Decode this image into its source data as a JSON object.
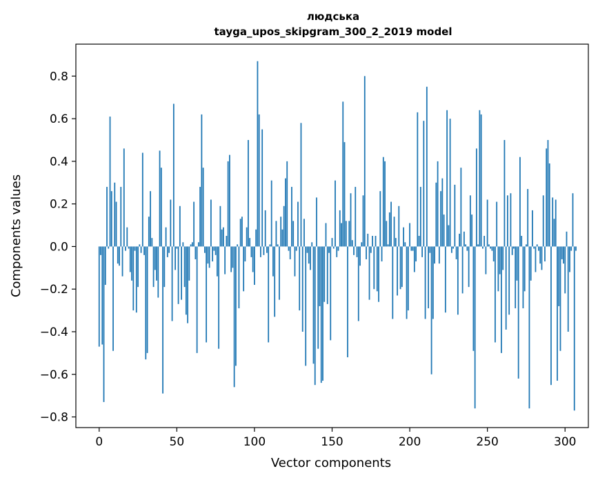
{
  "chart_data": {
    "type": "bar",
    "title": "людська",
    "subtitle": "tayga_upos_skipgram_300_2_2019 model",
    "xlabel": "Vector components",
    "ylabel": "Components values",
    "xlim": [
      -15,
      315
    ],
    "ylim": [
      -0.85,
      0.95
    ],
    "xticks": [
      0,
      50,
      100,
      150,
      200,
      250,
      300
    ],
    "yticks": [
      -0.8,
      -0.6,
      -0.4,
      -0.2,
      0.0,
      0.2,
      0.4,
      0.6,
      0.8
    ],
    "ytick_labels": [
      "−0.8",
      "−0.6",
      "−0.4",
      "−0.2",
      "0.0",
      "0.2",
      "0.4",
      "0.6",
      "0.8"
    ],
    "grid": false,
    "bar_color": "#1f77b4",
    "values": [
      -0.47,
      -0.04,
      -0.46,
      -0.73,
      -0.18,
      0.28,
      -0.01,
      0.61,
      0.26,
      -0.49,
      0.3,
      0.21,
      -0.08,
      -0.09,
      0.28,
      -0.14,
      0.46,
      -0.02,
      0.09,
      -0.01,
      -0.12,
      -0.16,
      -0.3,
      -0.02,
      -0.31,
      -0.19,
      0.01,
      -0.03,
      0.44,
      -0.04,
      -0.53,
      -0.5,
      0.14,
      0.26,
      0.04,
      -0.19,
      -0.11,
      -0.16,
      -0.24,
      0.45,
      0.37,
      -0.69,
      -0.19,
      0.09,
      -0.05,
      -0.03,
      0.22,
      -0.35,
      0.67,
      -0.11,
      -0.01,
      -0.27,
      0.19,
      -0.25,
      0.02,
      -0.19,
      -0.32,
      -0.36,
      -0.16,
      0.01,
      0.02,
      0.21,
      -0.06,
      -0.5,
      0.02,
      0.28,
      0.62,
      0.37,
      -0.03,
      -0.45,
      -0.08,
      -0.1,
      0.22,
      -0.07,
      -0.02,
      -0.04,
      -0.14,
      -0.48,
      0.19,
      0.08,
      0.09,
      -0.13,
      0.05,
      0.4,
      0.43,
      -0.12,
      -0.1,
      -0.66,
      -0.56,
      0.01,
      -0.29,
      0.13,
      0.14,
      -0.21,
      -0.07,
      0.09,
      0.5,
      0.04,
      -0.05,
      -0.12,
      -0.18,
      0.08,
      0.87,
      0.62,
      -0.05,
      0.55,
      -0.04,
      0.17,
      -0.03,
      -0.45,
      0.01,
      0.31,
      -0.14,
      -0.33,
      0.12,
      0.01,
      -0.25,
      0.14,
      0.08,
      0.19,
      0.32,
      0.4,
      -0.02,
      -0.06,
      0.28,
      0.12,
      -0.14,
      -0.02,
      0.21,
      -0.3,
      0.58,
      -0.4,
      0.13,
      -0.56,
      -0.03,
      -0.08,
      -0.11,
      0.02,
      -0.55,
      -0.65,
      0.23,
      -0.48,
      -0.28,
      -0.64,
      -0.63,
      -0.26,
      0.11,
      -0.27,
      -0.03,
      -0.44,
      0.04,
      -0.01,
      0.31,
      -0.05,
      -0.02,
      0.17,
      0.11,
      0.68,
      0.49,
      0.12,
      -0.52,
      0.12,
      0.25,
      0.03,
      -0.04,
      0.28,
      -0.05,
      -0.35,
      -0.09,
      0.02,
      0.24,
      0.8,
      -0.06,
      0.06,
      -0.25,
      -0.03,
      0.05,
      -0.2,
      0.05,
      -0.21,
      -0.26,
      0.26,
      -0.07,
      0.42,
      0.4,
      0.12,
      0.01,
      0.16,
      0.21,
      -0.34,
      0.14,
      0.04,
      -0.23,
      0.19,
      -0.2,
      -0.19,
      0.09,
      0.02,
      -0.34,
      -0.3,
      0.11,
      -0.02,
      -0.02,
      -0.12,
      -0.07,
      0.63,
      0.05,
      0.28,
      -0.05,
      0.59,
      -0.34,
      0.75,
      -0.29,
      -0.03,
      -0.6,
      -0.34,
      -0.08,
      0.3,
      0.4,
      -0.08,
      0.26,
      0.32,
      0.15,
      -0.31,
      0.64,
      0.1,
      0.6,
      -0.03,
      -0.01,
      0.29,
      -0.06,
      -0.32,
      0.06,
      0.37,
      -0.22,
      0.07,
      0.01,
      -0.02,
      -0.19,
      0.24,
      0.15,
      -0.49,
      -0.76,
      0.46,
      0.01,
      0.64,
      0.62,
      -0.01,
      0.05,
      -0.13,
      0.22,
      0.01,
      -0.01,
      -0.02,
      -0.07,
      -0.45,
      0.21,
      -0.21,
      -0.13,
      -0.5,
      -0.11,
      0.5,
      -0.39,
      0.24,
      -0.32,
      0.25,
      -0.04,
      -0.01,
      -0.29,
      -0.16,
      -0.62,
      0.42,
      0.05,
      -0.29,
      -0.21,
      0.01,
      0.27,
      -0.76,
      -0.16,
      0.17,
      -0.01,
      -0.12,
      0.01,
      -0.02,
      -0.08,
      -0.11,
      0.24,
      -0.07,
      0.46,
      0.5,
      0.39,
      -0.65,
      0.23,
      0.13,
      0.22,
      -0.63,
      -0.28,
      -0.49,
      -0.06,
      -0.08,
      -0.22,
      0.07,
      -0.4,
      -0.12,
      -0.02,
      0.25,
      -0.77,
      -0.02
    ]
  }
}
